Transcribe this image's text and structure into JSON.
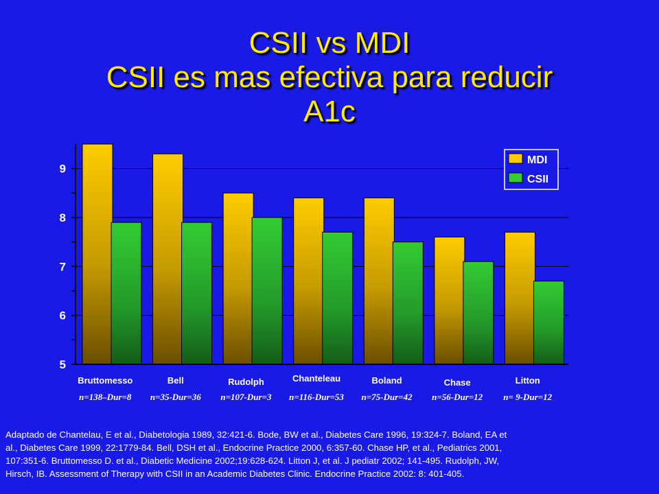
{
  "title_lines": [
    "CSII vs MDI",
    "CSII es mas efectiva para reducir",
    "A1c"
  ],
  "chart_data": {
    "type": "bar",
    "title": "CSII vs MDI CSII es mas efectiva para reducir A1c",
    "categories": [
      "Bruttomesso",
      "Bell",
      "Rudolph",
      "Chanteleau",
      "Boland",
      "Chase",
      "Litton"
    ],
    "category_notes": [
      "n=138–Dur=8",
      "n=35-Dur=36",
      "n=107-Dur=3",
      "n=116-Dur=53",
      "n=75-Dur=42",
      "n=56-Dur=12",
      "n= 9-Dur=12"
    ],
    "series": [
      {
        "name": "MDI",
        "values": [
          9.5,
          9.3,
          8.5,
          8.4,
          8.4,
          7.6,
          7.7
        ]
      },
      {
        "name": "CSII",
        "values": [
          7.9,
          7.9,
          8.0,
          7.7,
          7.5,
          7.1,
          6.7
        ]
      }
    ],
    "ylim": [
      5,
      9.5
    ],
    "yticks": [
      "5",
      "6",
      "7",
      "8",
      "9"
    ],
    "grid": true,
    "legend_position": "top-right",
    "colors": {
      "MDI": "#ffcc00",
      "CSII": "#33cc33"
    }
  },
  "footer_text": "Adaptado de Chantelau, E et al., Diabetologia 1989, 32:421-6. Bode, BW et al., Diabetes Care 1996, 19:324-7. Boland, EA et al., Diabetes Care 1999, 22:1779-84. Bell, DSH et al., Endocrine Practice 2000, 6:357-60. Chase HP, et al., Pediatrics 2001, 107:351-6. Bruttomesso D. et al., Diabetic Medicine 2002;19:628-624. Litton J, et al. J pediatr 2002; 141-495. Rudolph, JW, Hirsch, IB. Assessment of Therapy with CSII in an Academic Diabetes Clinic. Endocrine Practice 2002: 8: 401-405."
}
